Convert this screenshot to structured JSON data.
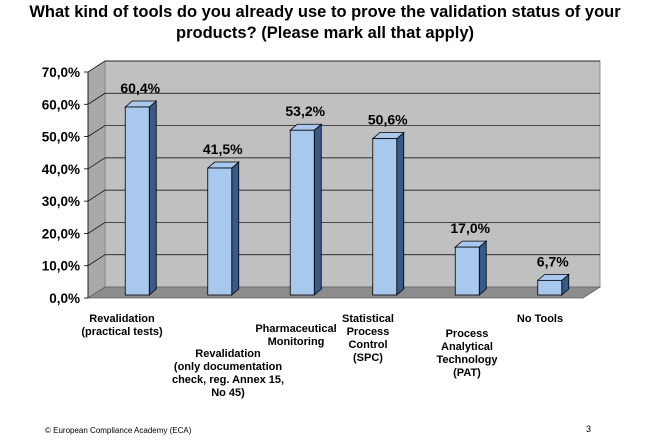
{
  "slide": {
    "title_lines": [
      "What kind of tools do you already use to prove the validation status of your",
      "products? (Please mark all that apply)"
    ],
    "footer": "© European Compliance Academy (ECA)",
    "page_number": "3"
  },
  "colors": {
    "bar_front": "#a8c8ee",
    "bar_side": "#3a5a86",
    "bar_top": "#a8c8ee",
    "back_wall": "#c0c0c0",
    "floor": "#8c8c8c",
    "grid": "#000000"
  },
  "chart_data": {
    "type": "bar",
    "title": "What kind of tools do you already use to prove the validation status of your products? (Please mark all that apply)",
    "categories": [
      [
        "Revalidation",
        "(practical tests)"
      ],
      [
        "Revalidation",
        "(only documentation",
        "check, reg. Annex 15,",
        "No 45)"
      ],
      [
        "Pharmaceutical",
        "Monitoring"
      ],
      [
        "Statistical",
        "Process",
        "Control",
        "(SPC)"
      ],
      [
        "Process",
        "Analytical",
        "Technology",
        "(PAT)"
      ],
      [
        "No Tools"
      ]
    ],
    "values": [
      60.4,
      41.5,
      53.2,
      50.6,
      17.0,
      6.7
    ],
    "data_labels": [
      "60,4%",
      "41,5%",
      "53,2%",
      "50,6%",
      "17,0%",
      "6,7%"
    ],
    "ylim": [
      0,
      70
    ],
    "yticks": [
      0,
      10,
      20,
      30,
      40,
      50,
      60,
      70
    ],
    "ytick_labels": [
      "0,0%",
      "10,0%",
      "20,0%",
      "30,0%",
      "40,0%",
      "50,0%",
      "60,0%",
      "70,0%"
    ],
    "grid": true,
    "legend": false,
    "style": "3d-column"
  }
}
